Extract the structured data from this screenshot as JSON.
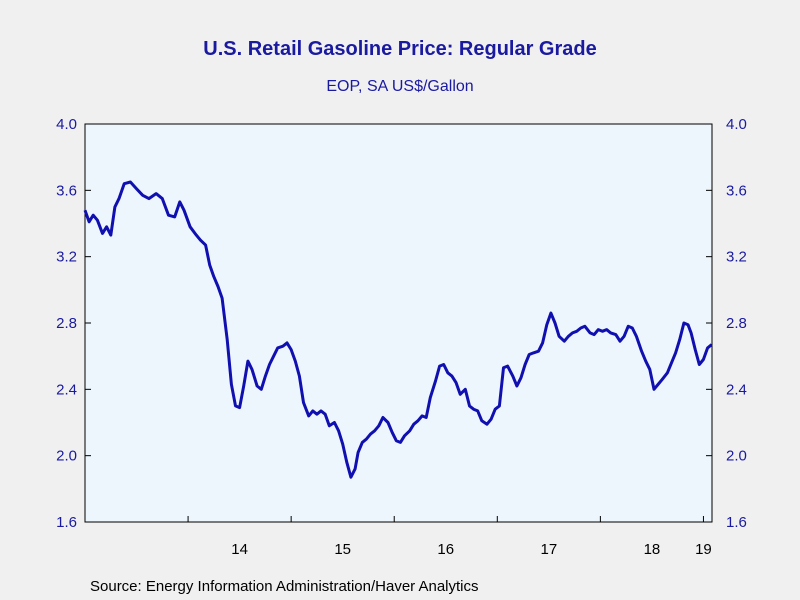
{
  "chart_data": {
    "type": "line",
    "title": "U.S. Retail Gasoline Price: Regular Grade",
    "subtitle": "EOP, SA US$/Gallon",
    "source": "Source:  Energy Information Administration/Haver Analytics",
    "ylim": [
      1.6,
      4.0
    ],
    "yticks": [
      "4.0",
      "3.6",
      "3.2",
      "2.8",
      "2.4",
      "2.0",
      "1.6"
    ],
    "xlim": [
      2013.0,
      2019.083
    ],
    "xticks": [
      {
        "label": "14",
        "value": 2014.5
      },
      {
        "label": "15",
        "value": 2015.5
      },
      {
        "label": "16",
        "value": 2016.5
      },
      {
        "label": "17",
        "value": 2017.5
      },
      {
        "label": "18",
        "value": 2018.5
      },
      {
        "label": "19",
        "value": 2019.0
      }
    ],
    "grid": false,
    "line_color": "#1010b0",
    "series": [
      {
        "values": [
          [
            2013.0,
            3.48
          ],
          [
            2013.04,
            3.41
          ],
          [
            2013.08,
            3.45
          ],
          [
            2013.12,
            3.42
          ],
          [
            2013.17,
            3.34
          ],
          [
            2013.21,
            3.38
          ],
          [
            2013.25,
            3.33
          ],
          [
            2013.29,
            3.5
          ],
          [
            2013.33,
            3.55
          ],
          [
            2013.38,
            3.64
          ],
          [
            2013.44,
            3.65
          ],
          [
            2013.5,
            3.61
          ],
          [
            2013.56,
            3.57
          ],
          [
            2013.62,
            3.55
          ],
          [
            2013.69,
            3.58
          ],
          [
            2013.75,
            3.55
          ],
          [
            2013.81,
            3.45
          ],
          [
            2013.87,
            3.44
          ],
          [
            2013.92,
            3.53
          ],
          [
            2013.96,
            3.48
          ],
          [
            2014.02,
            3.38
          ],
          [
            2014.08,
            3.33
          ],
          [
            2014.12,
            3.3
          ],
          [
            2014.17,
            3.27
          ],
          [
            2014.21,
            3.15
          ],
          [
            2014.25,
            3.08
          ],
          [
            2014.29,
            3.02
          ],
          [
            2014.33,
            2.95
          ],
          [
            2014.38,
            2.7
          ],
          [
            2014.42,
            2.43
          ],
          [
            2014.46,
            2.3
          ],
          [
            2014.5,
            2.29
          ],
          [
            2014.54,
            2.42
          ],
          [
            2014.58,
            2.57
          ],
          [
            2014.62,
            2.52
          ],
          [
            2014.67,
            2.42
          ],
          [
            2014.71,
            2.4
          ],
          [
            2014.75,
            2.48
          ],
          [
            2014.79,
            2.55
          ],
          [
            2014.83,
            2.6
          ],
          [
            2014.87,
            2.65
          ],
          [
            2014.92,
            2.66
          ],
          [
            2014.96,
            2.68
          ],
          [
            2015.0,
            2.64
          ],
          [
            2015.04,
            2.57
          ],
          [
            2015.08,
            2.48
          ],
          [
            2015.12,
            2.32
          ],
          [
            2015.17,
            2.24
          ],
          [
            2015.21,
            2.27
          ],
          [
            2015.25,
            2.25
          ],
          [
            2015.29,
            2.27
          ],
          [
            2015.33,
            2.25
          ],
          [
            2015.37,
            2.18
          ],
          [
            2015.42,
            2.2
          ],
          [
            2015.46,
            2.15
          ],
          [
            2015.5,
            2.07
          ],
          [
            2015.54,
            1.96
          ],
          [
            2015.58,
            1.87
          ],
          [
            2015.62,
            1.92
          ],
          [
            2015.65,
            2.02
          ],
          [
            2015.69,
            2.08
          ],
          [
            2015.73,
            2.1
          ],
          [
            2015.77,
            2.13
          ],
          [
            2015.81,
            2.15
          ],
          [
            2015.85,
            2.18
          ],
          [
            2015.89,
            2.23
          ],
          [
            2015.94,
            2.2
          ],
          [
            2015.98,
            2.14
          ],
          [
            2016.02,
            2.09
          ],
          [
            2016.06,
            2.08
          ],
          [
            2016.1,
            2.12
          ],
          [
            2016.15,
            2.15
          ],
          [
            2016.19,
            2.19
          ],
          [
            2016.23,
            2.21
          ],
          [
            2016.27,
            2.24
          ],
          [
            2016.31,
            2.23
          ],
          [
            2016.35,
            2.35
          ],
          [
            2016.4,
            2.45
          ],
          [
            2016.44,
            2.54
          ],
          [
            2016.48,
            2.55
          ],
          [
            2016.52,
            2.5
          ],
          [
            2016.56,
            2.48
          ],
          [
            2016.6,
            2.44
          ],
          [
            2016.64,
            2.37
          ],
          [
            2016.69,
            2.4
          ],
          [
            2016.73,
            2.3
          ],
          [
            2016.77,
            2.28
          ],
          [
            2016.81,
            2.27
          ],
          [
            2016.85,
            2.21
          ],
          [
            2016.9,
            2.19
          ],
          [
            2016.94,
            2.22
          ],
          [
            2016.98,
            2.28
          ],
          [
            2017.02,
            2.3
          ],
          [
            2017.06,
            2.53
          ],
          [
            2017.1,
            2.54
          ],
          [
            2017.15,
            2.48
          ],
          [
            2017.19,
            2.42
          ],
          [
            2017.23,
            2.47
          ],
          [
            2017.27,
            2.55
          ],
          [
            2017.31,
            2.61
          ],
          [
            2017.35,
            2.62
          ],
          [
            2017.4,
            2.63
          ],
          [
            2017.44,
            2.68
          ],
          [
            2017.48,
            2.79
          ],
          [
            2017.52,
            2.86
          ],
          [
            2017.56,
            2.8
          ],
          [
            2017.6,
            2.72
          ],
          [
            2017.65,
            2.69
          ],
          [
            2017.69,
            2.72
          ],
          [
            2017.73,
            2.74
          ],
          [
            2017.77,
            2.75
          ],
          [
            2017.81,
            2.77
          ],
          [
            2017.85,
            2.78
          ],
          [
            2017.9,
            2.74
          ],
          [
            2017.94,
            2.73
          ],
          [
            2017.98,
            2.76
          ],
          [
            2018.02,
            2.75
          ],
          [
            2018.06,
            2.76
          ],
          [
            2018.1,
            2.74
          ],
          [
            2018.15,
            2.73
          ],
          [
            2018.19,
            2.69
          ],
          [
            2018.23,
            2.72
          ],
          [
            2018.27,
            2.78
          ],
          [
            2018.31,
            2.77
          ],
          [
            2018.35,
            2.72
          ],
          [
            2018.4,
            2.63
          ],
          [
            2018.44,
            2.57
          ],
          [
            2018.48,
            2.52
          ],
          [
            2018.52,
            2.4
          ],
          [
            2018.56,
            2.43
          ],
          [
            2018.6,
            2.46
          ],
          [
            2018.65,
            2.5
          ],
          [
            2018.69,
            2.56
          ],
          [
            2018.73,
            2.62
          ],
          [
            2018.77,
            2.7
          ],
          [
            2018.81,
            2.8
          ],
          [
            2018.85,
            2.79
          ],
          [
            2018.88,
            2.74
          ],
          [
            2018.92,
            2.64
          ],
          [
            2018.96,
            2.55
          ],
          [
            2019.0,
            2.58
          ],
          [
            2019.04,
            2.65
          ],
          [
            2019.08,
            2.67
          ]
        ]
      }
    ]
  }
}
